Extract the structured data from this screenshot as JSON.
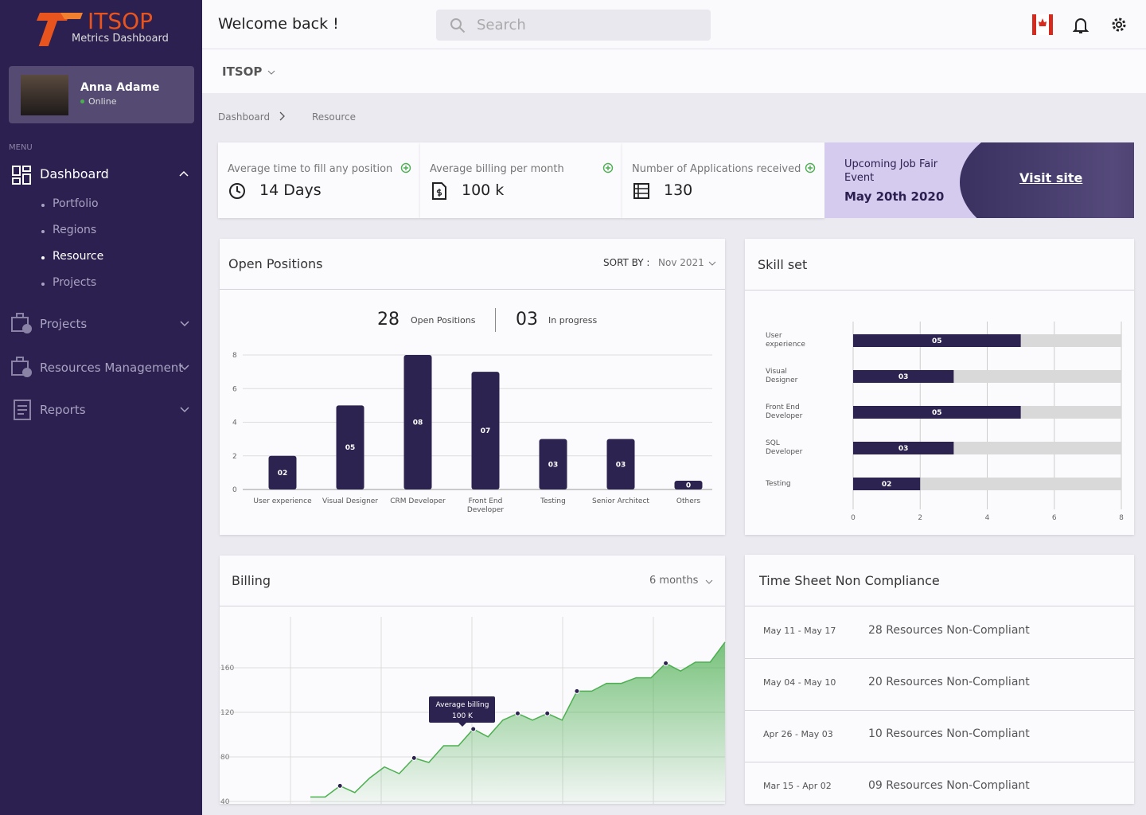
{
  "sidebar": {
    "logo": "ITSOP",
    "subtitle": "Metrics Dashboard",
    "user": {
      "name": "Anna Adame",
      "status": "Online"
    },
    "menu_label": "MENU",
    "items": [
      {
        "label": "Dashboard",
        "children": [
          "Portfolio",
          "Regions",
          "Resource",
          "Projects"
        ]
      },
      {
        "label": "Projects"
      },
      {
        "label": "Resources Management"
      },
      {
        "label": "Reports"
      }
    ]
  },
  "header": {
    "greeting": "Welcome back !",
    "search": "Search"
  },
  "org": "ITSOP",
  "breadcrumb": [
    "Dashboard",
    "Resource"
  ],
  "kpis": [
    {
      "label": "Average time to fill any position",
      "value": "14 Days"
    },
    {
      "label": "Average billing per month",
      "value": "100 k"
    },
    {
      "label": "Number of Applications received",
      "value": "130"
    }
  ],
  "event": {
    "title": "Upcoming Job Fair Event",
    "date": "May 20th 2020",
    "link": "Visit site"
  },
  "chart_data": [
    {
      "type": "bar",
      "title": "Open Positions",
      "sort_label": "SORT BY :",
      "sort_value": "Nov 2021",
      "summary": [
        {
          "value": 28,
          "label": "Open Positions"
        },
        {
          "value": "03",
          "label": "In progress"
        }
      ],
      "categories": [
        "User experience",
        "Visual Designer",
        "CRM Developer",
        "Front End Developer",
        "Testing",
        "Senior Architect",
        "Others"
      ],
      "values": [
        2,
        5,
        8,
        7,
        3,
        3,
        0
      ],
      "value_labels": [
        "02",
        "05",
        "08",
        "07",
        "03",
        "03",
        "0"
      ],
      "color": "#2d2350",
      "ylim": [
        0,
        8
      ],
      "yticks": [
        0,
        2,
        4,
        6,
        8
      ],
      "grid": true
    },
    {
      "type": "hbar",
      "title": "Skill set",
      "categories": [
        "User experience",
        "Visual Designer",
        "Front End Developer",
        "SQL Developer",
        "Testing"
      ],
      "values": [
        5,
        3,
        5,
        3,
        2
      ],
      "value_labels": [
        "05",
        "03",
        "05",
        "03",
        "02"
      ],
      "color": "#2d2350",
      "track_color": "#d9d9d9",
      "xlim": [
        0,
        8
      ],
      "xticks": [
        0,
        2,
        4,
        6,
        8
      ],
      "grid": true
    },
    {
      "type": "area",
      "title": "Billing",
      "period": "6 months",
      "values": [
        44,
        44,
        54,
        48,
        61,
        71,
        65,
        79,
        75,
        90,
        90,
        105,
        98,
        113,
        119,
        113,
        119,
        113,
        139,
        139,
        146,
        146,
        151,
        151,
        164,
        157,
        165,
        165,
        183
      ],
      "marker_indices": [
        2,
        7,
        11,
        14,
        16,
        18,
        24
      ],
      "annotation": {
        "label": "Average billing",
        "value": "100 K"
      },
      "color": "#4caf50",
      "ylim": [
        40,
        200
      ],
      "yticks": [
        40,
        80,
        120,
        160
      ],
      "grid": true
    }
  ],
  "timesheet": {
    "title": "Time Sheet Non Compliance",
    "rows": [
      [
        "May 11 - May 17",
        "28 Resources Non-Compliant"
      ],
      [
        "May 04 - May 10",
        "20 Resources Non-Compliant"
      ],
      [
        "Apr 26 - May 03",
        "10 Resources Non-Compliant"
      ],
      [
        "Mar 15 - Apr 02",
        "09 Resources Non-Compliant"
      ]
    ]
  }
}
